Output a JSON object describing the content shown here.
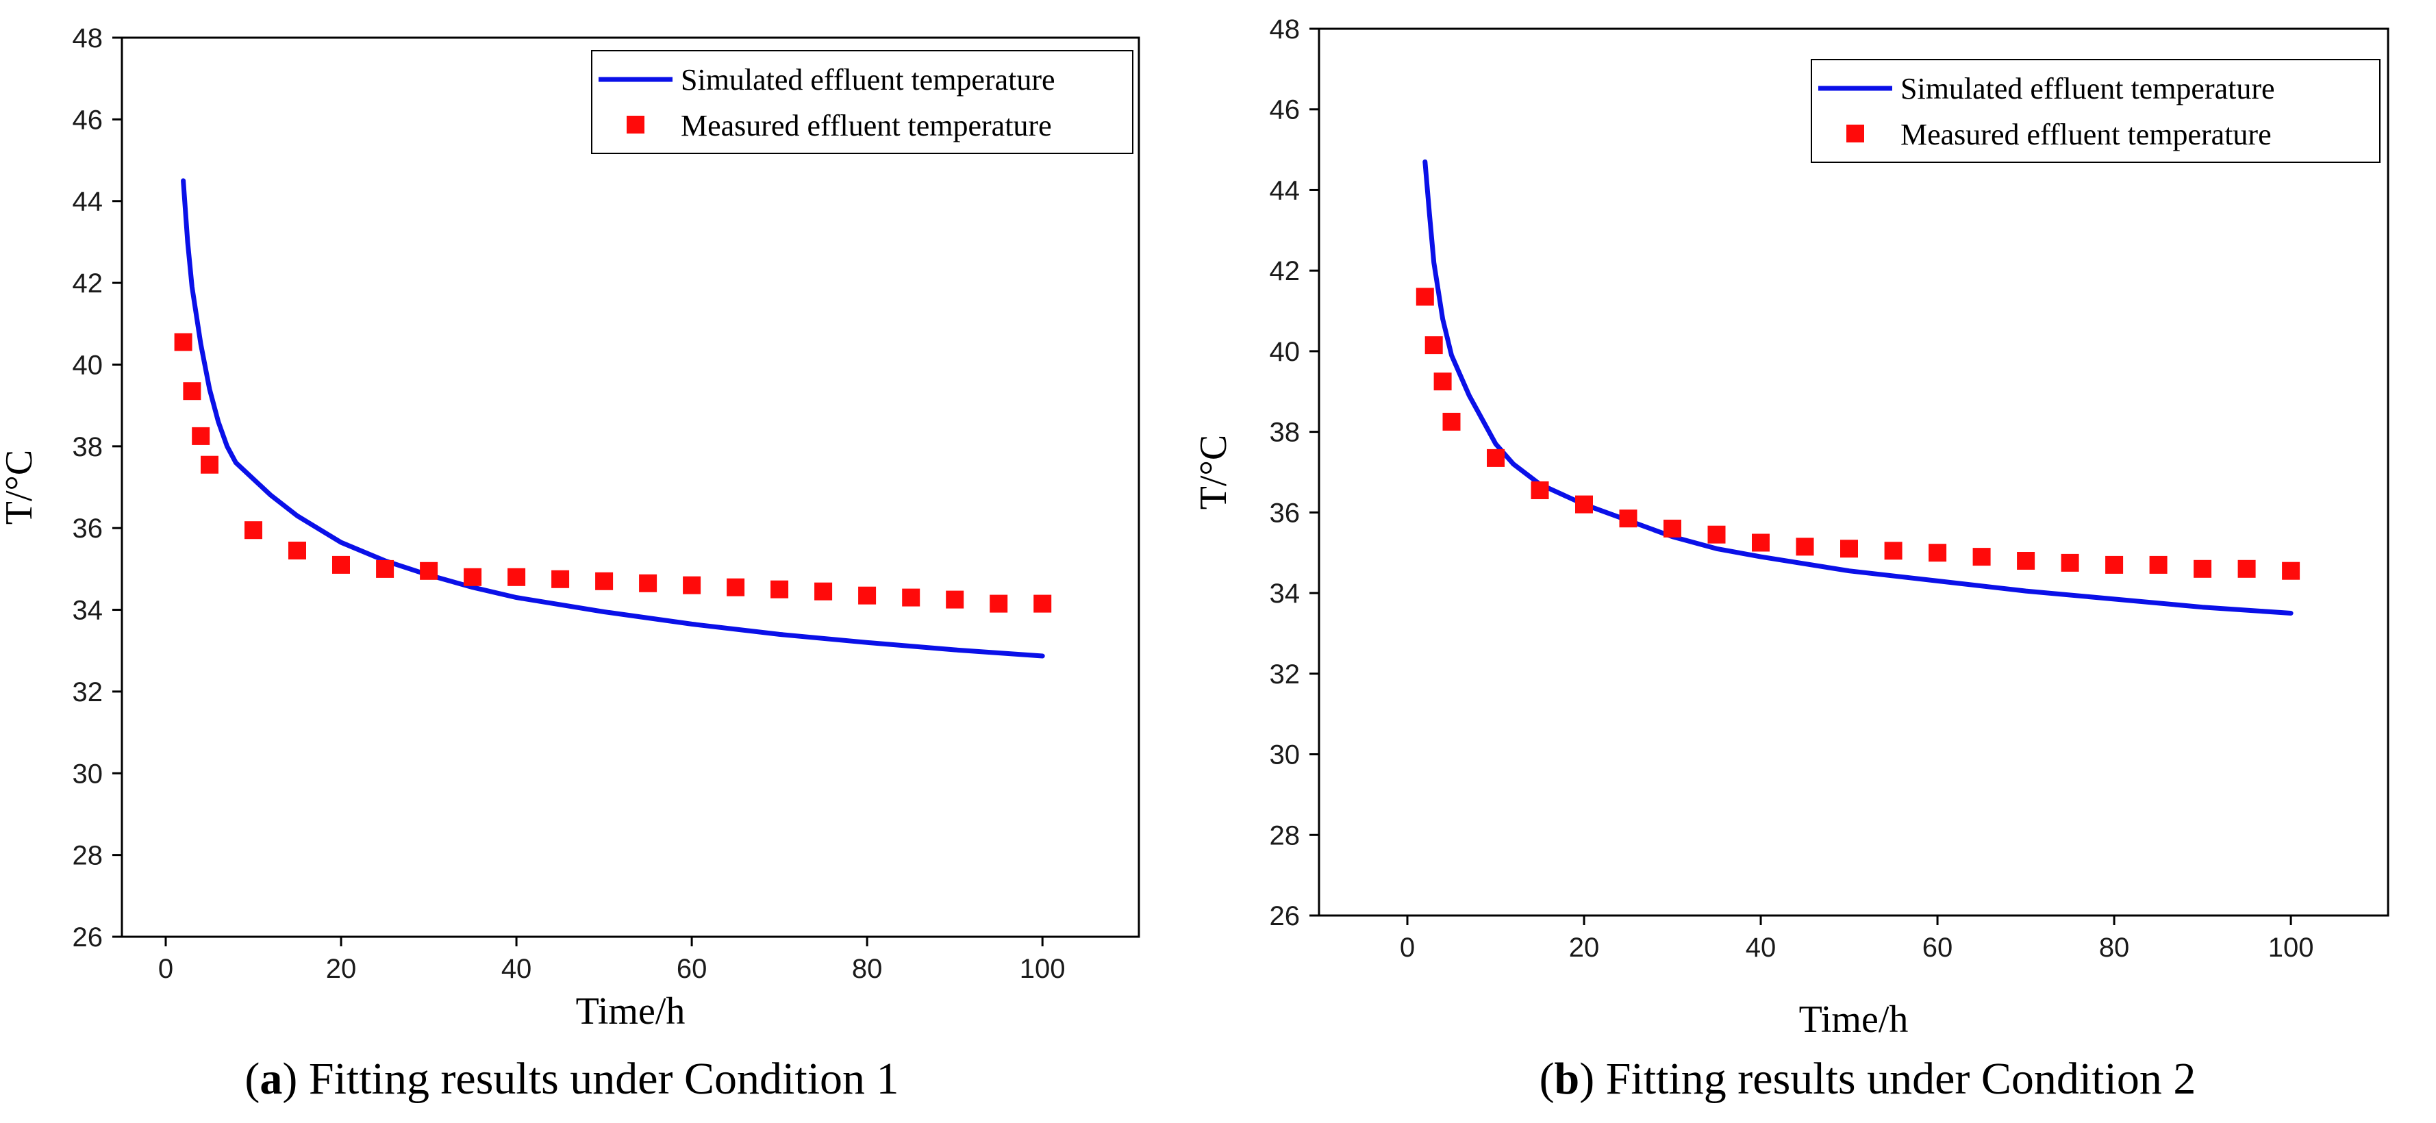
{
  "figure": {
    "line_color": "#0a10e8",
    "marker_color": "#ff0a0a",
    "axis_color": "#000000"
  },
  "chart_data": [
    {
      "type": "line",
      "panel_letter": "a",
      "caption_rest": ") Fitting results under Condition 1",
      "caption_open": "(",
      "title": "",
      "xlabel": "Time/h",
      "ylabel": "T/°C",
      "xlim": [
        -5,
        111
      ],
      "ylim": [
        26,
        48
      ],
      "xticks": [
        0,
        20,
        40,
        60,
        80,
        100
      ],
      "yticks": [
        26,
        28,
        30,
        32,
        34,
        36,
        38,
        40,
        42,
        44,
        46,
        48
      ],
      "legend_position": "top-right",
      "series": [
        {
          "name": "Simulated effluent temperature",
          "kind": "line",
          "x": [
            2,
            2.5,
            3,
            4,
            5,
            6,
            7,
            8,
            10,
            12,
            15,
            20,
            25,
            30,
            35,
            40,
            50,
            60,
            70,
            80,
            90,
            100
          ],
          "y": [
            44.5,
            43.0,
            41.9,
            40.5,
            39.4,
            38.6,
            38.0,
            37.6,
            37.2,
            36.8,
            36.3,
            35.65,
            35.2,
            34.85,
            34.55,
            34.3,
            33.95,
            33.65,
            33.4,
            33.2,
            33.02,
            32.87
          ]
        },
        {
          "name": "Measured effluent temperature",
          "kind": "scatter",
          "x": [
            2,
            3,
            4,
            5,
            10,
            15,
            20,
            25,
            30,
            35,
            40,
            45,
            50,
            55,
            60,
            65,
            70,
            75,
            80,
            85,
            90,
            95,
            100
          ],
          "y": [
            40.55,
            39.35,
            38.25,
            37.55,
            35.95,
            35.45,
            35.1,
            35.0,
            34.95,
            34.8,
            34.8,
            34.75,
            34.7,
            34.65,
            34.6,
            34.55,
            34.5,
            34.45,
            34.35,
            34.3,
            34.25,
            34.15,
            34.15
          ]
        }
      ]
    },
    {
      "type": "line",
      "panel_letter": "b",
      "caption_rest": ") Fitting results under Condition 2",
      "caption_open": "(",
      "title": "",
      "xlabel": "Time/h",
      "ylabel": "T/°C",
      "xlim": [
        -10,
        111
      ],
      "ylim": [
        26,
        48
      ],
      "xticks": [
        0,
        20,
        40,
        60,
        80,
        100
      ],
      "yticks": [
        26,
        28,
        30,
        32,
        34,
        36,
        38,
        40,
        42,
        44,
        46,
        48
      ],
      "legend_position": "top-right",
      "series": [
        {
          "name": "Simulated effluent temperature",
          "kind": "line",
          "x": [
            2,
            2.5,
            3,
            4,
            5,
            7,
            10,
            12,
            15,
            20,
            25,
            30,
            35,
            40,
            50,
            60,
            70,
            80,
            90,
            100
          ],
          "y": [
            44.7,
            43.4,
            42.2,
            40.8,
            39.9,
            38.9,
            37.7,
            37.2,
            36.7,
            36.2,
            35.8,
            35.4,
            35.1,
            34.9,
            34.55,
            34.3,
            34.05,
            33.85,
            33.65,
            33.5
          ]
        },
        {
          "name": "Measured effluent temperature",
          "kind": "scatter",
          "x": [
            2,
            3,
            4,
            5,
            10,
            15,
            20,
            25,
            30,
            35,
            40,
            45,
            50,
            55,
            60,
            65,
            70,
            75,
            80,
            85,
            90,
            95,
            100
          ],
          "y": [
            41.35,
            40.15,
            39.25,
            38.25,
            37.35,
            36.55,
            36.2,
            35.85,
            35.6,
            35.45,
            35.25,
            35.15,
            35.1,
            35.05,
            35.0,
            34.9,
            34.8,
            34.75,
            34.7,
            34.7,
            34.6,
            34.6,
            34.55
          ]
        }
      ]
    }
  ]
}
